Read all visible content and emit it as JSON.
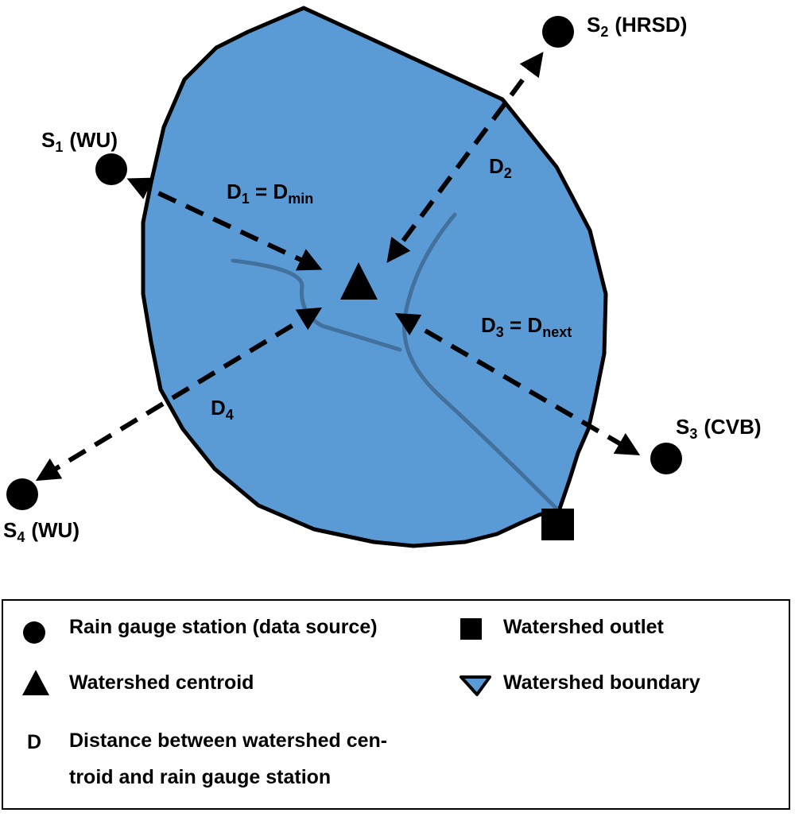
{
  "colors": {
    "watershed_fill": "#5b9bd5",
    "stream": "#41719c",
    "outline": "#000000"
  },
  "stations": [
    {
      "name": "S",
      "index": "1",
      "source": "(WU)"
    },
    {
      "name": "S",
      "index": "2",
      "source": "(HRSD)"
    },
    {
      "name": "S",
      "index": "3",
      "source": "(CVB)"
    },
    {
      "name": "S",
      "index": "4",
      "source": "(WU)"
    }
  ],
  "distances": [
    {
      "name": "D",
      "index": "1",
      "suffix": " = D",
      "suffix_sub": "min"
    },
    {
      "name": "D",
      "index": "2",
      "suffix": "",
      "suffix_sub": ""
    },
    {
      "name": "D",
      "index": "3",
      "suffix": " = D",
      "suffix_sub": "next"
    },
    {
      "name": "D",
      "index": "4",
      "suffix": "",
      "suffix_sub": ""
    }
  ],
  "legend": {
    "rain_gauge": "Rain gauge station (data source)",
    "outlet": "Watershed outlet",
    "centroid": "Watershed centroid",
    "boundary": "Watershed boundary",
    "distance_symbol": "D",
    "distance_line1": "Distance between watershed cen-",
    "distance_line2": "troid and rain gauge station"
  }
}
